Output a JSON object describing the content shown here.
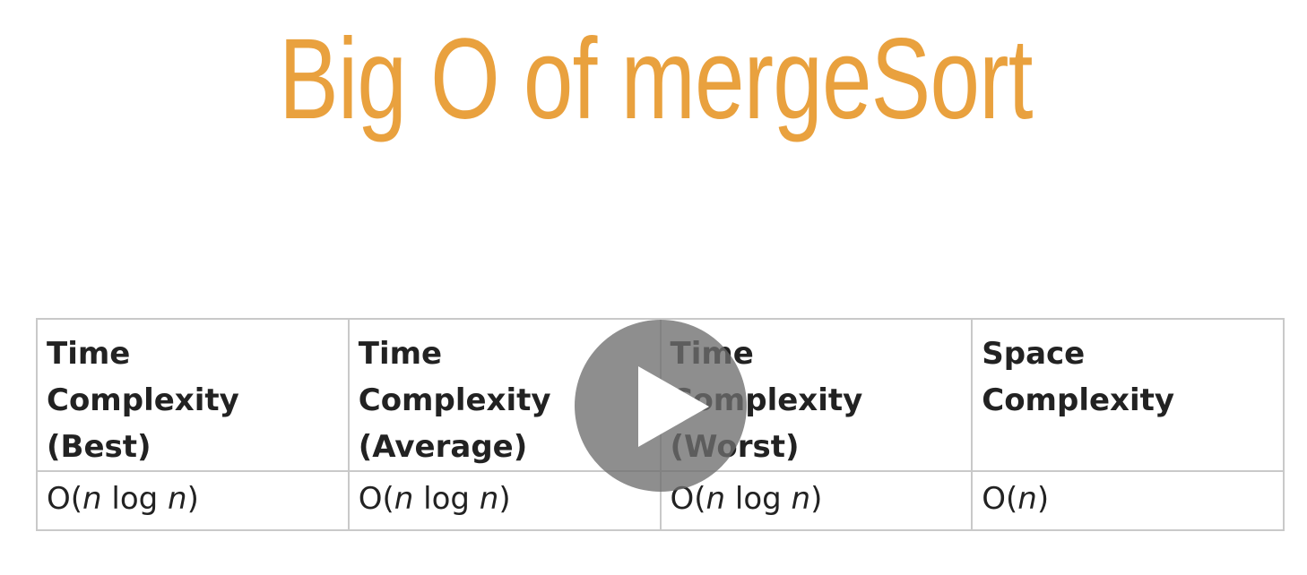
{
  "slide": {
    "title": "Big O of mergeSort"
  },
  "table": {
    "headers": [
      [
        "Time",
        "Complexity",
        "(Best)"
      ],
      [
        "Time",
        "Complexity",
        "(Average)"
      ],
      [
        "Time",
        "Complexity",
        "(Worst)"
      ],
      [
        "Space",
        "Complexity"
      ]
    ],
    "values": [
      {
        "prefix": "O(",
        "n1": "n",
        "mid": " log ",
        "n2": "n",
        "suffix": ")"
      },
      {
        "prefix": "O(",
        "n1": "n",
        "mid": " log ",
        "n2": "n",
        "suffix": ")"
      },
      {
        "prefix": "O(",
        "n1": "n",
        "mid": " log ",
        "n2": "n",
        "suffix": ")"
      },
      {
        "prefix": "O(",
        "n1": "n",
        "suffix": ")"
      }
    ]
  },
  "video": {
    "play_icon": "play-icon"
  },
  "colors": {
    "title": "#e9a13e",
    "table_border": "#c9c9c9",
    "text": "#222222",
    "play_overlay": "#6e6e6e"
  }
}
